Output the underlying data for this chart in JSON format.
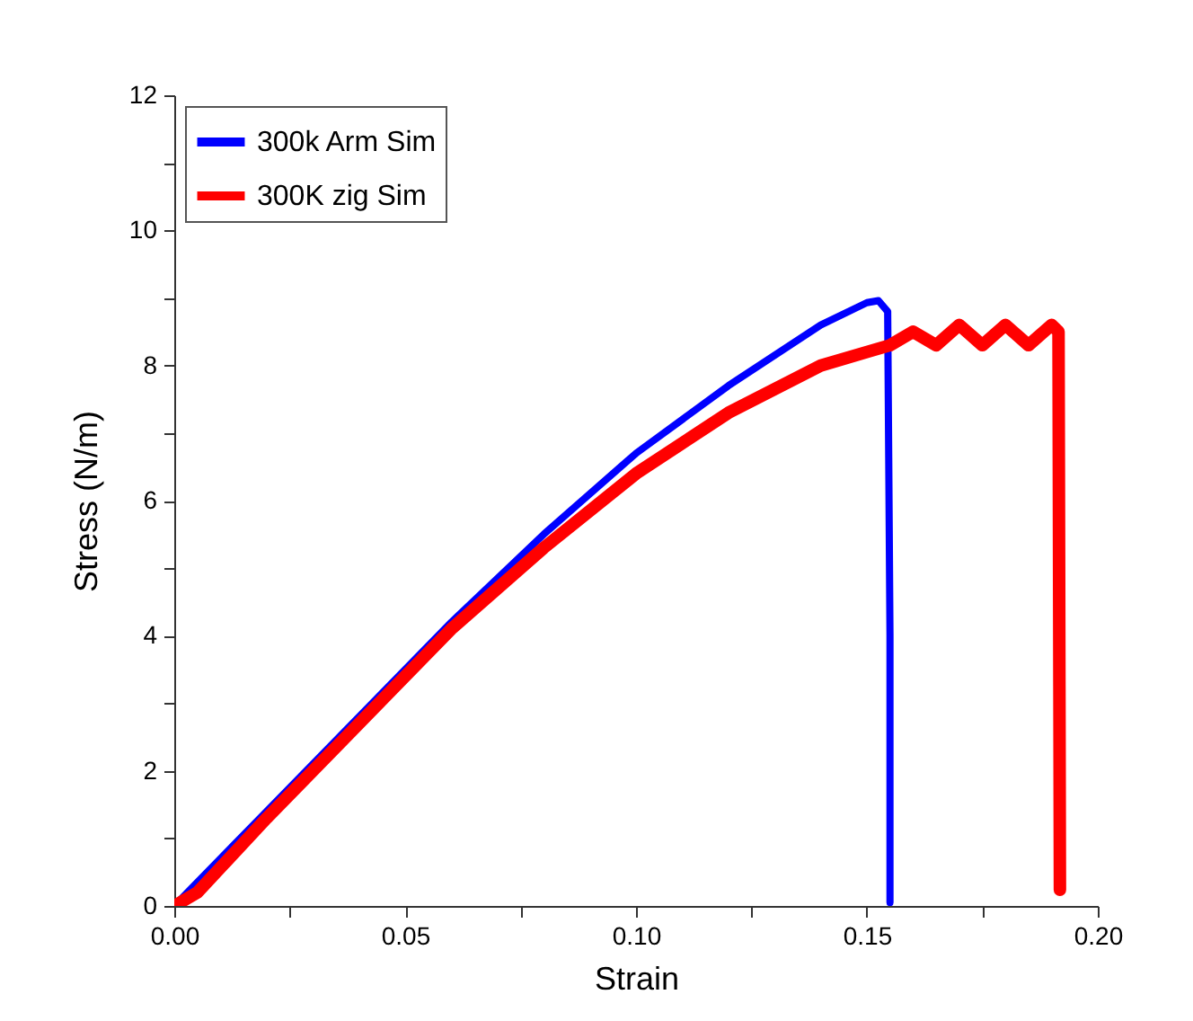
{
  "chart_data": {
    "type": "line",
    "xlabel": "Strain",
    "ylabel": "Stress (N/m)",
    "xlim": [
      0,
      0.2
    ],
    "ylim": [
      0,
      12
    ],
    "xticks": [
      {
        "value": 0,
        "label": "0.00"
      },
      {
        "value": 0.025,
        "label": null
      },
      {
        "value": 0.05,
        "label": "0.05"
      },
      {
        "value": 0.075,
        "label": null
      },
      {
        "value": 0.1,
        "label": "0.10"
      },
      {
        "value": 0.125,
        "label": null
      },
      {
        "value": 0.15,
        "label": "0.15"
      },
      {
        "value": 0.175,
        "label": null
      },
      {
        "value": 0.2,
        "label": "0.20"
      }
    ],
    "yticks": [
      0,
      {
        "value": 1,
        "label": null
      },
      2,
      {
        "value": 3,
        "label": null
      },
      4,
      {
        "value": 5,
        "label": null
      },
      6,
      {
        "value": 7,
        "label": null
      },
      8,
      {
        "value": 9,
        "label": null
      },
      10,
      {
        "value": 11,
        "label": null
      },
      12
    ],
    "grid": false,
    "legend": "top left",
    "marker": "none",
    "line_style": "solid",
    "series": [
      {
        "name": "300k Arm Sim",
        "color": "#0000ff",
        "x": [
          0,
          0.02,
          0.04,
          0.06,
          0.08,
          0.1,
          0.12,
          0.14,
          0.15,
          0.1525,
          0.1545,
          0.155,
          0.155
        ],
        "values": [
          0,
          1.4,
          2.8,
          4.2,
          5.5,
          6.7,
          7.7,
          8.6,
          8.93,
          8.96,
          8.8,
          4,
          0.05
        ]
      },
      {
        "name": "300K zig Sim",
        "color": "#ff0000",
        "x": [
          0,
          0.005,
          0.02,
          0.04,
          0.06,
          0.08,
          0.1,
          0.12,
          0.14,
          0.15,
          0.155,
          0.16,
          0.165,
          0.17,
          0.175,
          0.18,
          0.185,
          0.19,
          0.1915,
          0.1918
        ],
        "values": [
          0,
          0.2,
          1.3,
          2.7,
          4.1,
          5.3,
          6.4,
          7.3,
          8,
          8.2,
          8.3,
          8.5,
          8.3,
          8.6,
          8.3,
          8.6,
          8.3,
          8.6,
          8.5,
          0.24
        ]
      }
    ]
  }
}
